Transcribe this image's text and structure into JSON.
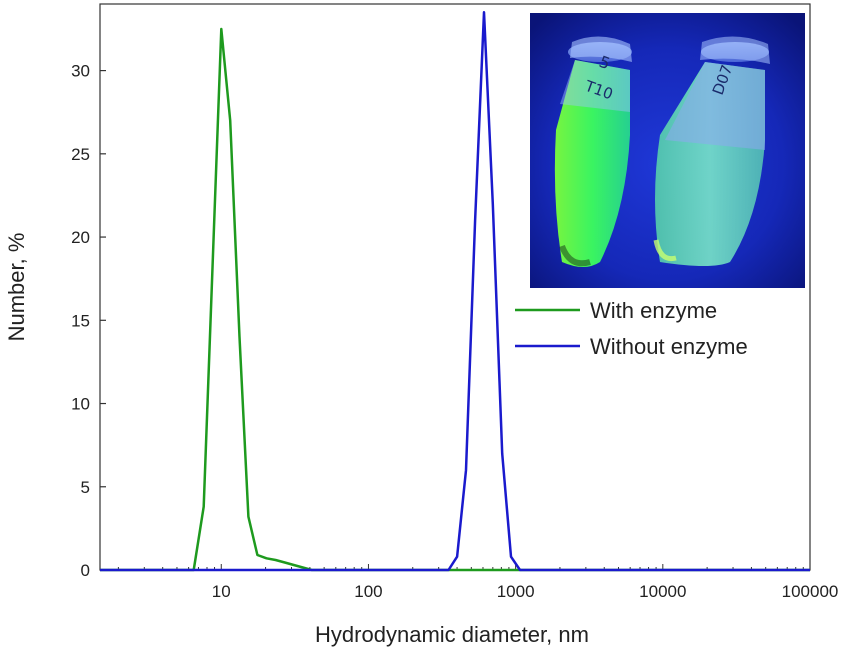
{
  "chart_data": {
    "type": "line",
    "xscale": "log",
    "xlabel": "Hydrodynamic diameter, nm",
    "ylabel": "Number, %",
    "xlim": [
      1.5,
      100000
    ],
    "ylim": [
      0,
      34
    ],
    "xticks": [
      10,
      100,
      1000,
      10000,
      100000
    ],
    "xtick_labels": [
      "10",
      "100",
      "1000",
      "10000",
      "100000"
    ],
    "yticks": [
      0,
      5,
      10,
      15,
      20,
      25,
      30
    ],
    "ytick_labels": [
      "0",
      "5",
      "10",
      "15",
      "20",
      "25",
      "30"
    ],
    "grid": false,
    "legend_position": "right",
    "series": [
      {
        "name": "With enzyme",
        "color": "#1e9a1e",
        "x": [
          1.5,
          6.5,
          7.6,
          8.7,
          10.0,
          11.5,
          13.3,
          15.3,
          17.6,
          20.3,
          23.4,
          27.0,
          31.1,
          35.8,
          41.3,
          100000
        ],
        "y": [
          0,
          0,
          3.8,
          18.0,
          32.5,
          27.0,
          14.0,
          3.2,
          0.9,
          0.7,
          0.6,
          0.45,
          0.3,
          0.15,
          0,
          0
        ]
      },
      {
        "name": "Without enzyme",
        "color": "#1a1acd",
        "x": [
          1.5,
          350,
          400,
          460,
          530,
          610,
          700,
          810,
          930,
          1070,
          100000
        ],
        "y": [
          0,
          0,
          0.8,
          6.0,
          21.0,
          33.5,
          22.0,
          7.0,
          0.8,
          0,
          0
        ]
      }
    ]
  },
  "inset_photo": {
    "description_icon": "fluorescent-tubes-photo",
    "tube_labels": [
      "5\nT10",
      "D07"
    ]
  }
}
